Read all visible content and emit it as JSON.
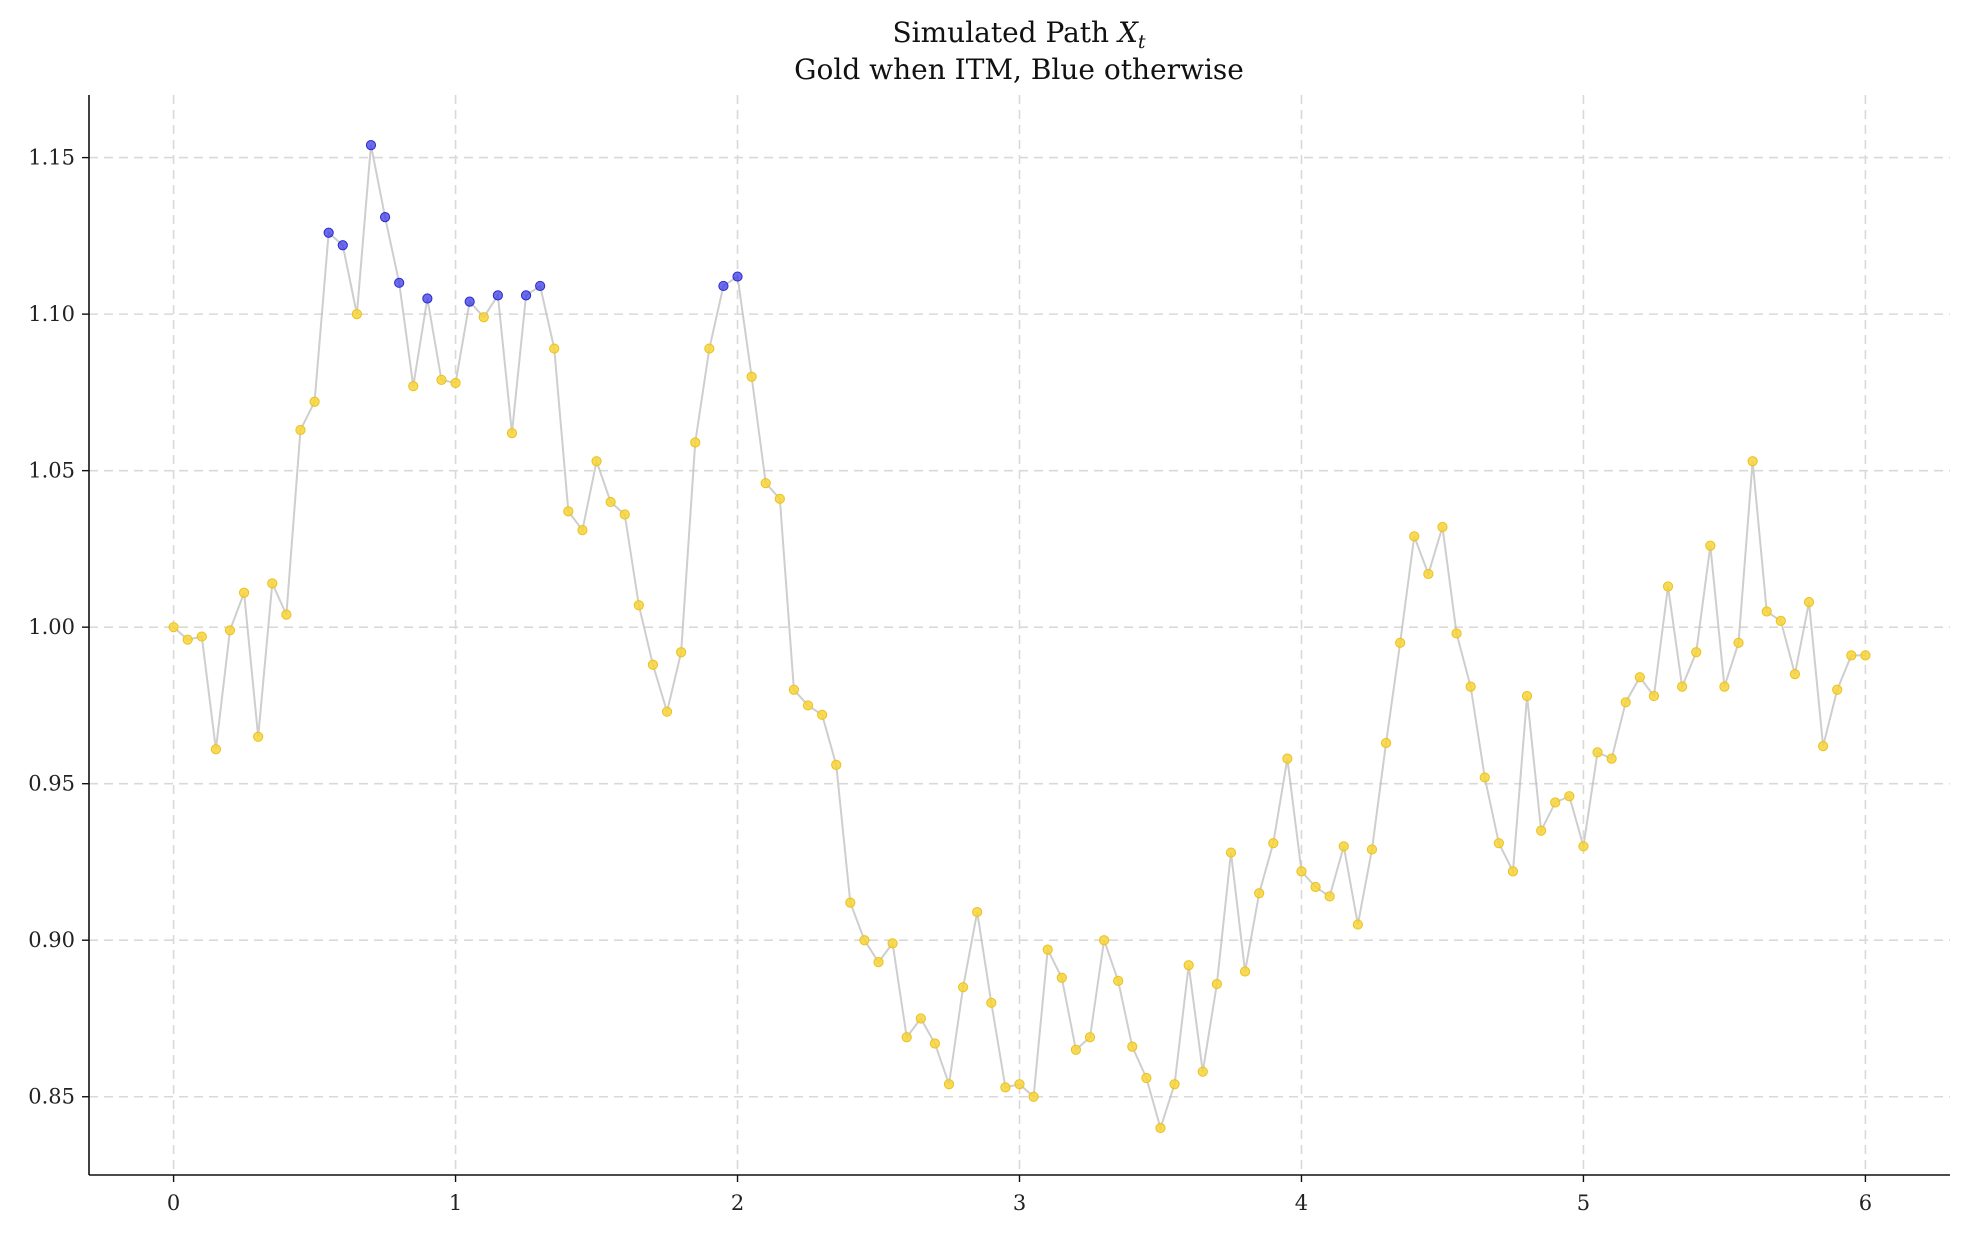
{
  "chart_data": {
    "type": "scatter",
    "title_line1": "Simulated Path ",
    "title_var": "X",
    "title_sub": "t",
    "title_line2": "Gold when ITM, Blue otherwise",
    "xlabel": "",
    "ylabel": "",
    "xlim": [
      -0.3,
      6.3
    ],
    "ylim": [
      0.825,
      1.17
    ],
    "xticks": [
      0,
      1,
      2,
      3,
      4,
      5,
      6
    ],
    "xtick_labels": [
      "0",
      "1",
      "2",
      "3",
      "4",
      "5",
      "6"
    ],
    "yticks": [
      0.85,
      0.9,
      0.95,
      1.0,
      1.05,
      1.1,
      1.15
    ],
    "ytick_labels": [
      "0.85",
      "0.90",
      "0.95",
      "1.00",
      "1.05",
      "1.10",
      "1.15"
    ],
    "grid": true,
    "colors": {
      "itm": "#f7d43a",
      "otm": "#3a3ae6",
      "line": "#bdbdbd"
    },
    "series": [
      {
        "x": [
          0.0,
          0.05,
          0.1,
          0.15,
          0.2,
          0.25,
          0.3,
          0.35,
          0.4,
          0.45,
          0.5,
          0.55,
          0.6,
          0.65,
          0.7,
          0.75,
          0.8,
          0.85,
          0.9,
          0.95,
          1.0,
          1.05,
          1.1,
          1.15,
          1.2,
          1.25,
          1.3,
          1.35,
          1.4,
          1.45,
          1.5,
          1.55,
          1.6,
          1.65,
          1.7,
          1.75,
          1.8,
          1.85,
          1.9,
          1.95,
          2.0,
          2.05,
          2.1,
          2.15,
          2.2,
          2.25,
          2.3,
          2.35,
          2.4,
          2.45,
          2.5,
          2.55,
          2.6,
          2.65,
          2.7,
          2.75,
          2.8,
          2.85,
          2.9,
          2.95,
          3.0,
          3.05,
          3.1,
          3.15,
          3.2,
          3.25,
          3.3,
          3.35,
          3.4,
          3.45,
          3.5,
          3.55,
          3.6,
          3.65,
          3.7,
          3.75,
          3.8,
          3.85,
          3.9,
          3.95,
          4.0,
          4.05,
          4.1,
          4.15,
          4.2,
          4.25,
          4.3,
          4.35,
          4.4,
          4.45,
          4.5,
          4.55,
          4.6,
          4.65,
          4.7,
          4.75,
          4.8,
          4.85,
          4.9,
          4.95,
          5.0,
          5.05,
          5.1,
          5.15,
          5.2,
          5.25,
          5.3,
          5.35,
          5.4,
          5.45,
          5.5,
          5.55,
          5.6,
          5.65,
          5.7,
          5.75,
          5.8,
          5.85,
          5.9,
          5.95,
          6.0
        ],
        "y": [
          1.0,
          0.996,
          0.997,
          0.961,
          0.999,
          1.011,
          0.965,
          1.014,
          1.004,
          1.063,
          1.072,
          1.126,
          1.122,
          1.1,
          1.154,
          1.131,
          1.11,
          1.077,
          1.105,
          1.079,
          1.078,
          1.104,
          1.099,
          1.106,
          1.062,
          1.106,
          1.109,
          1.089,
          1.037,
          1.031,
          1.053,
          1.04,
          1.036,
          1.007,
          0.988,
          0.973,
          0.992,
          1.059,
          1.089,
          1.109,
          1.112,
          1.08,
          1.046,
          1.041,
          0.98,
          0.975,
          0.972,
          0.956,
          0.912,
          0.9,
          0.893,
          0.899,
          0.869,
          0.875,
          0.867,
          0.854,
          0.885,
          0.909,
          0.88,
          0.853,
          0.854,
          0.85,
          0.897,
          0.888,
          0.865,
          0.869,
          0.9,
          0.887,
          0.866,
          0.856,
          0.84,
          0.854,
          0.892,
          0.858,
          0.886,
          0.928,
          0.89,
          0.915,
          0.931,
          0.958,
          0.922,
          0.917,
          0.914,
          0.93,
          0.905,
          0.929,
          0.963,
          0.995,
          1.029,
          1.017,
          1.032,
          0.998,
          0.981,
          0.952,
          0.931,
          0.922,
          0.978,
          0.935,
          0.944,
          0.946,
          0.93,
          0.96,
          0.958,
          0.976,
          0.984,
          0.978,
          1.013,
          0.981,
          0.992,
          1.026,
          0.981,
          0.995,
          1.053,
          1.005,
          1.002,
          0.985,
          1.008,
          0.962,
          0.98,
          0.991,
          0.991
        ],
        "itm": [
          true,
          true,
          true,
          true,
          true,
          true,
          true,
          true,
          true,
          true,
          true,
          false,
          false,
          true,
          false,
          false,
          false,
          true,
          false,
          true,
          true,
          false,
          true,
          false,
          true,
          false,
          false,
          true,
          true,
          true,
          true,
          true,
          true,
          true,
          true,
          true,
          true,
          true,
          true,
          false,
          false,
          true,
          true,
          true,
          true,
          true,
          true,
          true,
          true,
          true,
          true,
          true,
          true,
          true,
          true,
          true,
          true,
          true,
          true,
          true,
          true,
          true,
          true,
          true,
          true,
          true,
          true,
          true,
          true,
          true,
          true,
          true,
          true,
          true,
          true,
          true,
          true,
          true,
          true,
          true,
          true,
          true,
          true,
          true,
          true,
          true,
          true,
          true,
          true,
          true,
          true,
          true,
          true,
          true,
          true,
          true,
          true,
          true,
          true,
          true,
          true,
          true,
          true,
          true,
          true,
          true,
          true,
          true,
          true,
          true,
          true,
          true,
          true,
          true,
          true,
          true,
          true,
          true,
          true,
          true,
          true
        ]
      }
    ]
  }
}
